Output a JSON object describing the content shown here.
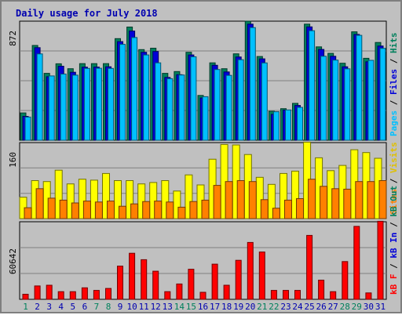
{
  "chart_data": {
    "type": "bar",
    "title": "Daily usage for July 2018",
    "days": [
      "1",
      "2",
      "3",
      "4",
      "5",
      "6",
      "7",
      "8",
      "9",
      "10",
      "11",
      "12",
      "13",
      "14",
      "15",
      "16",
      "17",
      "18",
      "19",
      "20",
      "21",
      "22",
      "23",
      "24",
      "25",
      "26",
      "27",
      "28",
      "29",
      "30",
      "31"
    ],
    "weekend_days": [
      "1",
      "7",
      "8",
      "14",
      "15",
      "21",
      "22",
      "28",
      "29"
    ],
    "panels": [
      {
        "name": "hits-files-pages",
        "ymax_label": "872",
        "ymax": 872,
        "series": [
          {
            "name": "Hits",
            "color": "#00805c",
            "values": [
              200,
              694,
              490,
              560,
              524,
              561,
              561,
              561,
              744,
              829,
              664,
              674,
              490,
              503,
              644,
              328,
              567,
              524,
              633,
              872,
              613,
              212,
              231,
              270,
              850,
              684,
              636,
              564,
              794,
              600,
              716
            ]
          },
          {
            "name": "Files",
            "color": "#0000d8",
            "values": [
              175,
              678,
              465,
              542,
              498,
              535,
              536,
              538,
              722,
              800,
              644,
              650,
              460,
              480,
              625,
              310,
              549,
              500,
              610,
              850,
              596,
              190,
              221,
              255,
              830,
              665,
              615,
              538,
              775,
              575,
              690
            ]
          },
          {
            "name": "Pages",
            "color": "#00c0ff",
            "values": [
              170,
              632,
              471,
              485,
              477,
              526,
              527,
              526,
              702,
              752,
              625,
              567,
              451,
              478,
              611,
              319,
              518,
              475,
              590,
              825,
              566,
              209,
              222,
              241,
              802,
              615,
              587,
              523,
              768,
              585,
              673
            ]
          }
        ],
        "side_labels": [
          "Pages",
          "Files",
          "Hits"
        ]
      },
      {
        "name": "visits-sites",
        "ymax_label": "160",
        "ymax": 160,
        "series": [
          {
            "name": "Visits",
            "color": "#ffff00",
            "values": [
              45,
              80,
              78,
              102,
              73,
              83,
              81,
              95,
              80,
              80,
              73,
              76,
              80,
              58,
              92,
              71,
              125,
              156,
              155,
              135,
              87,
              72,
              95,
              100,
              161,
              128,
              101,
              112,
              145,
              139,
              127
            ]
          },
          {
            "name": "Sites",
            "color": "#ff8000",
            "values": [
              23,
              63,
              43,
              39,
              33,
              37,
              35,
              37,
              26,
              31,
              36,
              37,
              35,
              24,
              36,
              39,
              70,
              78,
              80,
              78,
              40,
              22,
              39,
              42,
              83,
              68,
              63,
              62,
              78,
              78,
              80
            ]
          }
        ],
        "side_labels": [
          "Sites",
          "Visits"
        ]
      },
      {
        "name": "kbytes",
        "ymax_label": "60642",
        "ymax": 60642,
        "series": [
          {
            "name": "KBytes",
            "color": "#ff0000",
            "values": [
              4000,
              10500,
              11000,
              6000,
              6000,
              9000,
              7000,
              8500,
              26000,
              36000,
              31000,
              22000,
              6000,
              12000,
              23500,
              5500,
              27500,
              11000,
              30500,
              44500,
              37000,
              7000,
              7000,
              7000,
              50000,
              15000,
              6000,
              29500,
              57000,
              5000,
              61000
            ]
          }
        ],
        "side_labels": [
          "kB F",
          "kB In",
          "kB Out"
        ]
      }
    ],
    "colors": {
      "background": "#c0c0c0",
      "plot_area": "#c0c0c0",
      "grid": "#808080",
      "axis": "#000000",
      "weekday_label": "#0000b0",
      "weekend_label": "#00805c",
      "title": "#0000b0",
      "kbin": "#0000d8",
      "kbout": "#00805c"
    }
  }
}
